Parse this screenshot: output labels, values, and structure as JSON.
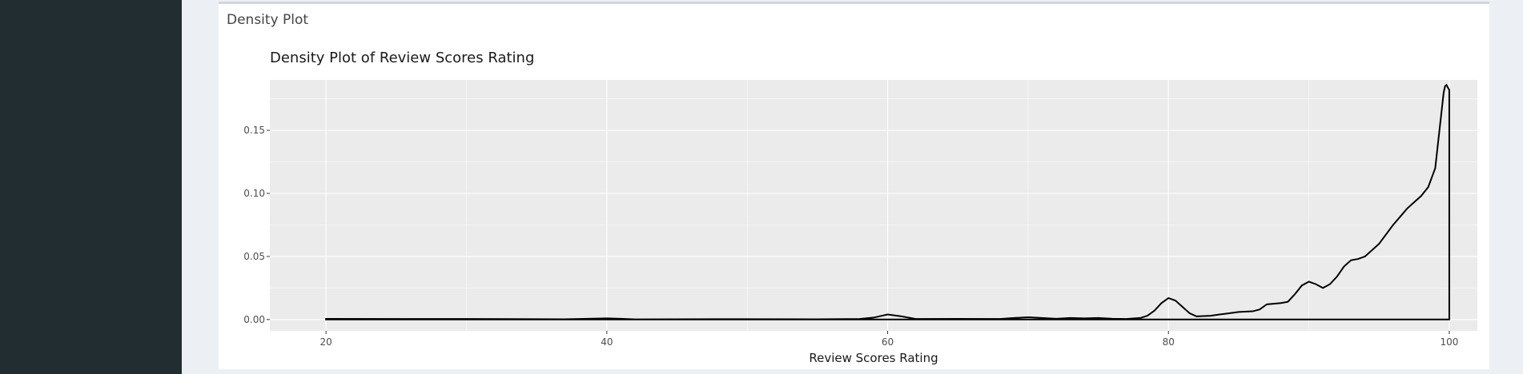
{
  "box": {
    "title": "Density Plot"
  },
  "chart_data": {
    "type": "area",
    "title": "Density Plot of Review Scores Rating",
    "xlabel": "Review Scores Rating",
    "ylabel": "",
    "xlim": [
      16,
      102
    ],
    "ylim": [
      -0.009,
      0.19
    ],
    "x_ticks": [
      20,
      40,
      60,
      80,
      100
    ],
    "x_tick_labels": [
      "20",
      "40",
      "60",
      "80",
      "100"
    ],
    "y_ticks": [
      0.0,
      0.05,
      0.1,
      0.15
    ],
    "y_tick_labels": [
      "0.00",
      "0.05",
      "0.10",
      "0.15"
    ],
    "grid": true,
    "legend": "none",
    "colors": {
      "panel": "#ebebeb",
      "grid": "#ffffff",
      "line": "#000000"
    },
    "series": [
      {
        "x": [
          20,
          30,
          37,
          39,
          40,
          41,
          42,
          50,
          55,
          58,
          59,
          60,
          61,
          62,
          65,
          68,
          69,
          70,
          71,
          72,
          73,
          74,
          75,
          76,
          77,
          78,
          78.5,
          79,
          79.5,
          80,
          80.5,
          81,
          81.5,
          82,
          83,
          84,
          85,
          86,
          86.5,
          87,
          88,
          88.5,
          89,
          89.5,
          90,
          90.5,
          91,
          91.5,
          92,
          92.5,
          93,
          93.5,
          94,
          95,
          96,
          97,
          98,
          98.5,
          99,
          99.2,
          99.4,
          99.6,
          99.7,
          99.8,
          99.9,
          100,
          100
        ],
        "y": [
          0.0005,
          0.0004,
          0.0002,
          0.0007,
          0.0009,
          0.0006,
          0.0001,
          0.0003,
          0.0002,
          0.0004,
          0.0015,
          0.004,
          0.0025,
          0.0004,
          0.0005,
          0.0004,
          0.0012,
          0.0018,
          0.0012,
          0.0006,
          0.0012,
          0.0009,
          0.0012,
          0.0006,
          0.0004,
          0.0012,
          0.003,
          0.007,
          0.013,
          0.017,
          0.015,
          0.01,
          0.005,
          0.0025,
          0.003,
          0.0045,
          0.006,
          0.0065,
          0.008,
          0.012,
          0.013,
          0.014,
          0.02,
          0.027,
          0.03,
          0.028,
          0.025,
          0.028,
          0.034,
          0.042,
          0.047,
          0.048,
          0.05,
          0.06,
          0.075,
          0.088,
          0.098,
          0.105,
          0.12,
          0.14,
          0.16,
          0.18,
          0.185,
          0.186,
          0.184,
          0.182,
          0
        ]
      }
    ]
  }
}
